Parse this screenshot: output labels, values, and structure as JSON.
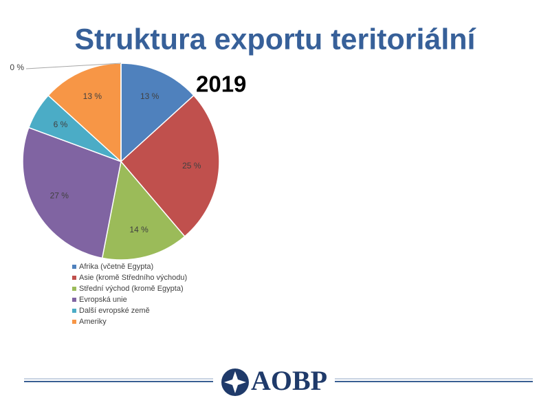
{
  "title": "Struktura exportu teritoriální",
  "logo": "AOBP",
  "chart_data": {
    "type": "pie",
    "title": "2019",
    "categories": [
      "Afrika (včetně Egypta)",
      "Asie (kromě Středního východu)",
      "Střední východ (kromě Egypta)",
      "Evropská unie",
      "Další evropské země",
      "Ameriky",
      null
    ],
    "values": [
      13,
      25,
      14,
      27,
      6,
      13,
      0
    ],
    "value_labels": [
      "13 %",
      "25 %",
      "14 %",
      "27 %",
      "6 %",
      "13 %",
      "0 %"
    ],
    "colors": [
      "#4f81bd",
      "#c0504d",
      "#9bbb59",
      "#8064a2",
      "#4bacc6",
      "#f79646",
      "#2c4d75"
    ],
    "legend": "bottom"
  }
}
